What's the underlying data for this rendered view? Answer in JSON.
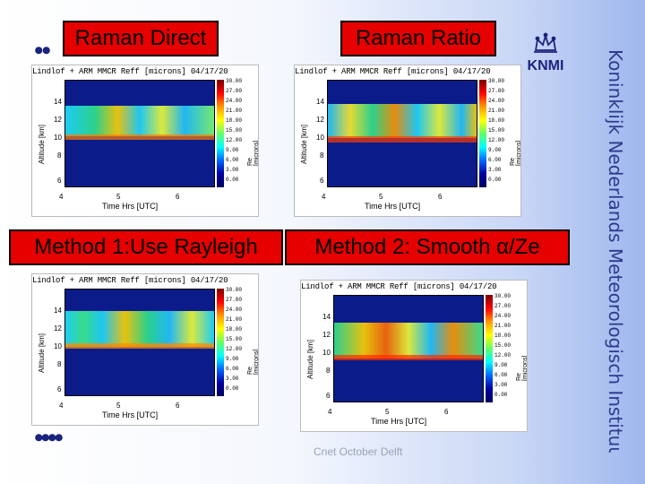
{
  "slide": {
    "boxes": {
      "raman_direct": "Raman Direct",
      "raman_ratio": "Raman Ratio",
      "method1": "Method 1:Use Rayleigh",
      "method2": "Method 2: Smooth α/Ze"
    },
    "panel_title": "Lindlof + ARM MMCR Reff [microns] 04/17/20",
    "y_axis_label": "Altitude [km]",
    "x_axis_label": "Time Hrs [UTC]",
    "x_ticks": [
      "4",
      "5",
      "6"
    ],
    "y_ticks": [
      "14",
      "12",
      "10",
      "8",
      "6"
    ],
    "colorbar_ticks": [
      "30.00",
      "27.00",
      "24.00",
      "21.00",
      "18.00",
      "15.00",
      "12.00",
      "9.00",
      "6.00",
      "3.00",
      "0.00"
    ],
    "colorbar_unit": "Re [microns]",
    "logo_text": "KNMI",
    "institute_name": "Koninklijk Nederlands Meteorologisch Instituut",
    "footer": "Cnet October Delft",
    "bullets": {
      "top": "••",
      "bottom": "••••"
    }
  }
}
